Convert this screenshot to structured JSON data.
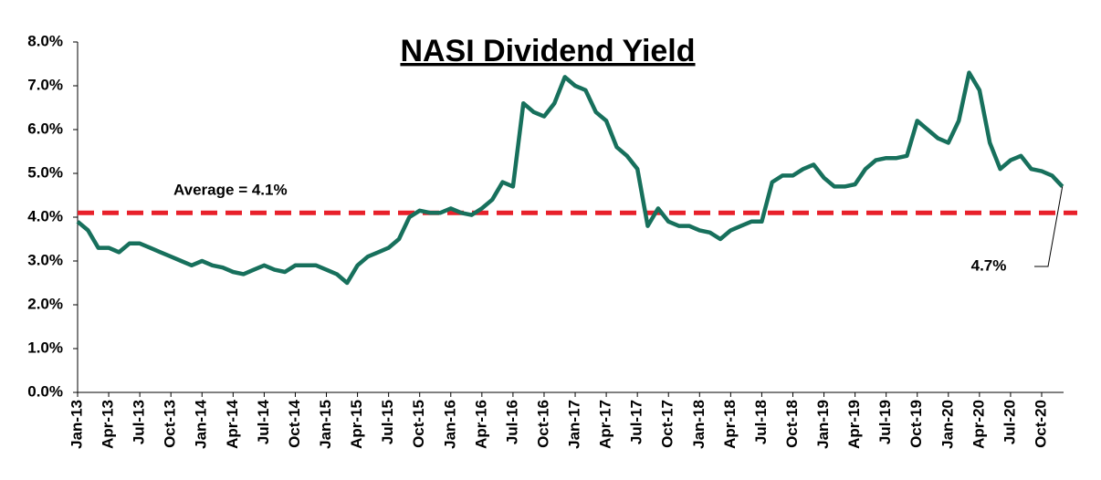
{
  "chart_data": {
    "type": "line",
    "title": "NASI Dividend Yield",
    "categories": [
      "Jan-13",
      null,
      null,
      "Apr-13",
      null,
      null,
      "Jul-13",
      null,
      null,
      "Oct-13",
      null,
      null,
      "Jan-14",
      null,
      null,
      "Apr-14",
      null,
      null,
      "Jul-14",
      null,
      null,
      "Oct-14",
      null,
      null,
      "Jan-15",
      null,
      null,
      "Apr-15",
      null,
      null,
      "Jul-15",
      null,
      null,
      "Oct-15",
      null,
      null,
      "Jan-16",
      null,
      null,
      "Apr-16",
      null,
      null,
      "Jul-16",
      null,
      null,
      "Oct-16",
      null,
      null,
      "Jan-17",
      null,
      null,
      "Apr-17",
      null,
      null,
      "Jul-17",
      null,
      null,
      "Oct-17",
      null,
      null,
      "Jan-18",
      null,
      null,
      "Apr-18",
      null,
      null,
      "Jul-18",
      null,
      null,
      "Oct-18",
      null,
      null,
      "Jan-19",
      null,
      null,
      "Apr-19",
      null,
      null,
      "Jul-19",
      null,
      null,
      "Oct-19",
      null,
      null,
      "Jan-20",
      null,
      null,
      "Apr-20",
      null,
      null,
      "Jul-20",
      null,
      null,
      "Oct-20",
      null,
      null
    ],
    "series": [
      {
        "color": "#17705c",
        "values": [
          3.9,
          3.7,
          3.3,
          3.3,
          3.2,
          3.4,
          3.4,
          3.3,
          3.2,
          3.1,
          3.0,
          2.9,
          3.0,
          2.9,
          2.85,
          2.75,
          2.7,
          2.8,
          2.9,
          2.8,
          2.75,
          2.9,
          2.9,
          2.9,
          2.8,
          2.7,
          2.5,
          2.9,
          3.1,
          3.2,
          3.3,
          3.5,
          4.0,
          4.15,
          4.1,
          4.1,
          4.2,
          4.1,
          4.05,
          4.2,
          4.4,
          4.8,
          4.7,
          6.6,
          6.4,
          6.3,
          6.6,
          7.2,
          7.0,
          6.9,
          6.4,
          6.2,
          5.6,
          5.4,
          5.1,
          3.8,
          4.2,
          3.9,
          3.8,
          3.8,
          3.7,
          3.65,
          3.5,
          3.7,
          3.8,
          3.9,
          3.9,
          4.8,
          4.95,
          4.95,
          5.1,
          5.2,
          4.9,
          4.7,
          4.7,
          4.75,
          5.1,
          5.3,
          5.35,
          5.35,
          5.4,
          6.2,
          6.0,
          5.8,
          5.7,
          6.2,
          7.3,
          6.9,
          5.7,
          5.1,
          5.3,
          5.4,
          5.1,
          5.05,
          4.95,
          4.7
        ]
      }
    ],
    "ylim": [
      0,
      8
    ],
    "yticks": [
      {
        "value": 0,
        "label": "0.0%"
      },
      {
        "value": 1,
        "label": "1.0%"
      },
      {
        "value": 2,
        "label": "2.0%"
      },
      {
        "value": 3,
        "label": "3.0%"
      },
      {
        "value": 4,
        "label": "4.0%"
      },
      {
        "value": 5,
        "label": "5.0%"
      },
      {
        "value": 6,
        "label": "6.0%"
      },
      {
        "value": 7,
        "label": "7.0%"
      },
      {
        "value": 8,
        "label": "8.0%"
      }
    ],
    "average": {
      "value": 4.1,
      "label": "Average = 4.1%",
      "color": "#e8202a"
    },
    "end_label": "4.7%",
    "grid": false
  }
}
